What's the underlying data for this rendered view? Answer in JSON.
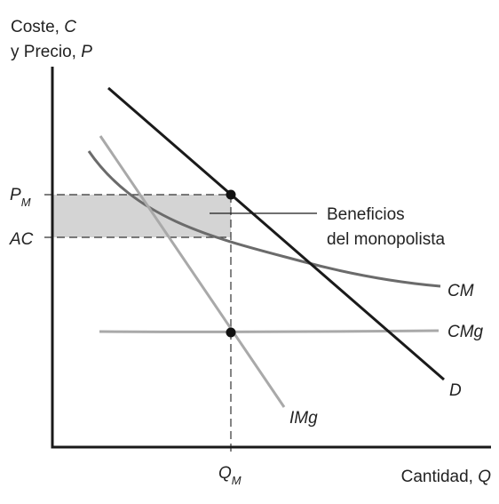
{
  "y_axis": {
    "line1_prefix": "Coste, ",
    "line1_var": "C",
    "line2_prefix": "y Precio, ",
    "line2_var": "P"
  },
  "x_axis": {
    "prefix": "Cantidad, ",
    "var": "Q"
  },
  "ticks": {
    "pm_main": "P",
    "pm_sub": "M",
    "ac": "AC",
    "qm_main": "Q",
    "qm_sub": "M"
  },
  "annotation": {
    "line1": "Beneficios",
    "line2": "del monopolista"
  },
  "curves": {
    "cm": "CM",
    "cmg": "CMg",
    "demand": "D",
    "img": "IMg"
  },
  "colors": {
    "demand": "#1a1a1a",
    "img": "#a9a9a9",
    "cm": "#6b6b6b",
    "cmg": "#a9a9a9",
    "profit_fill": "#d4d4d4",
    "axis": "#1a1a1a"
  }
}
